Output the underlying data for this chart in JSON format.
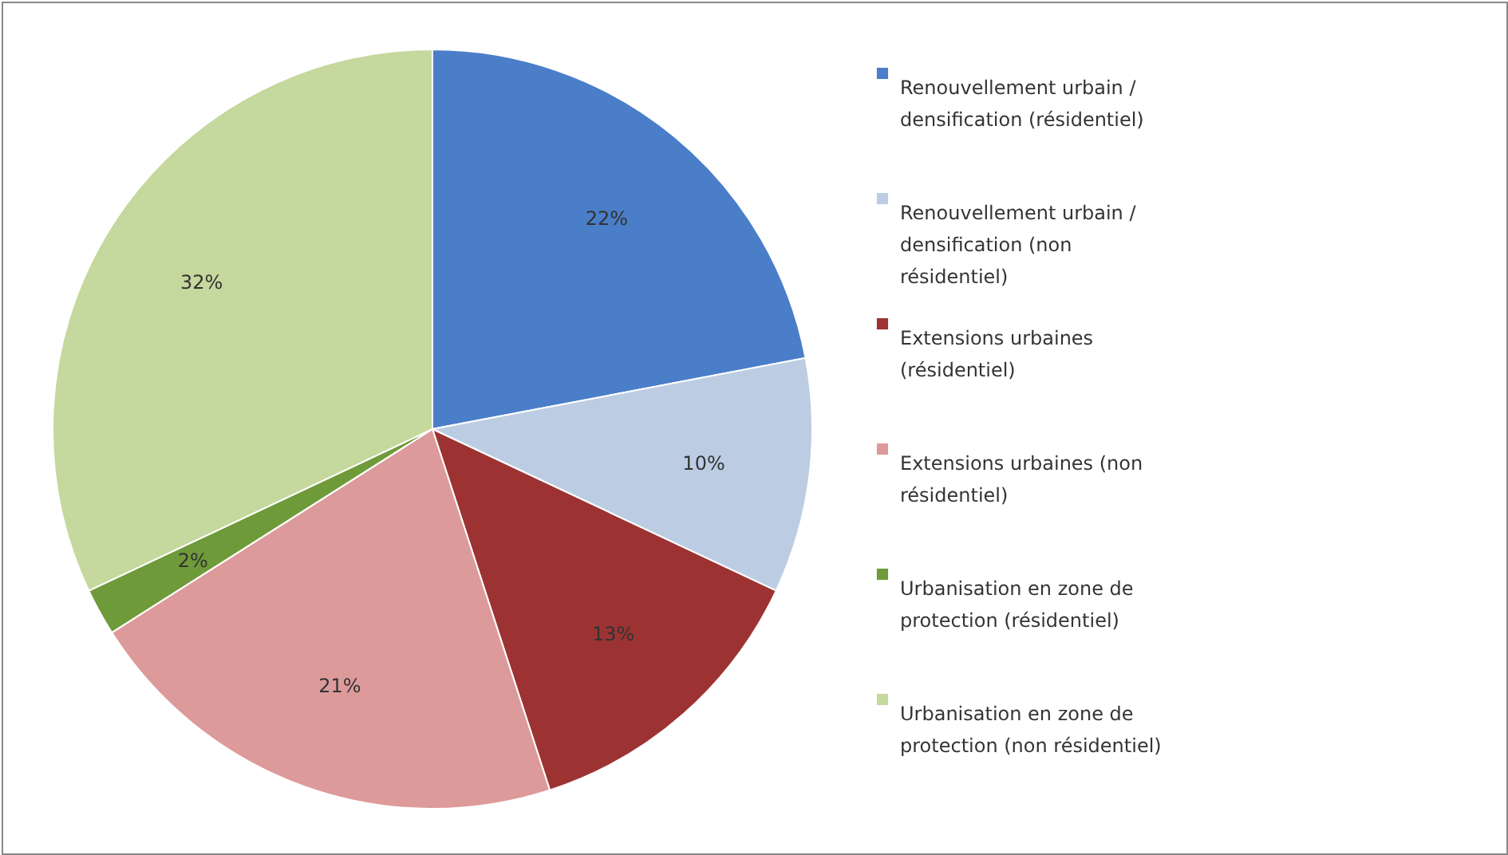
{
  "chart_data": {
    "type": "pie",
    "categories": [
      "Renouvellement urbain / densification (résidentiel)",
      "Renouvellement urbain / densification (non résidentiel)",
      "Extensions urbaines (résidentiel)",
      "Extensions urbaines (non résidentiel)",
      "Urbanisation en zone de protection (résidentiel)",
      "Urbanisation en zone de protection (non résidentiel)"
    ],
    "values": [
      22,
      10,
      13,
      21,
      2,
      32
    ],
    "colors": [
      "#4a7ec9",
      "#bccde3",
      "#9c3332",
      "#dd9a9a",
      "#6f9a3a",
      "#c5d89d"
    ],
    "value_labels": [
      "22%",
      "10%",
      "13%",
      "21%",
      "2%",
      "32%"
    ],
    "legend": "right"
  }
}
